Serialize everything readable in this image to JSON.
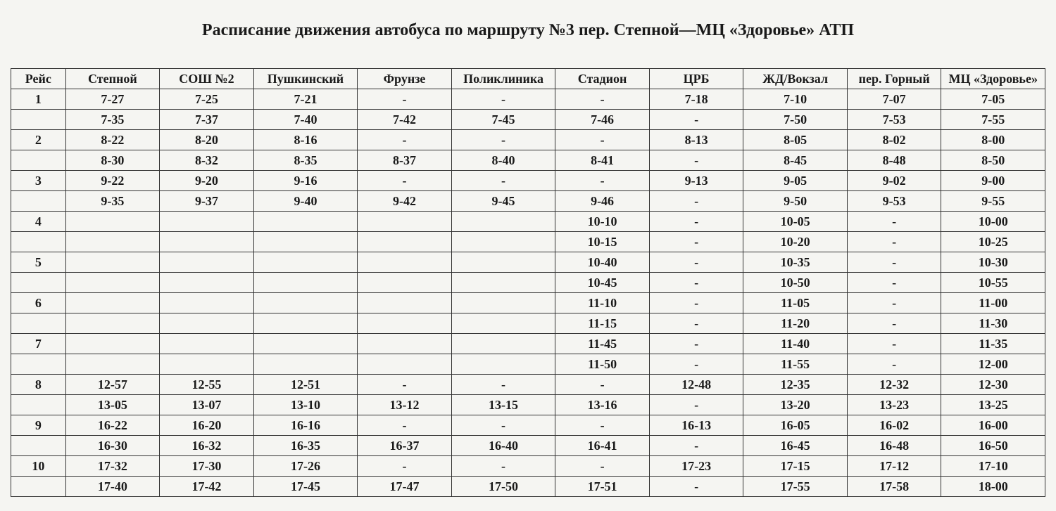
{
  "title": "Расписание движения автобуса по маршруту №3   пер. Степной—МЦ «Здоровье» АТП",
  "columns": [
    "Рейс",
    "Степной",
    "СОШ №2",
    "Пушкинский",
    "Фрунзе",
    "Поликлиника",
    "Стадион",
    "ЦРБ",
    "ЖД/Вокзал",
    "пер. Горный",
    "МЦ «Здоровье»"
  ],
  "rows": [
    [
      "1",
      "7-27",
      "7-25",
      "7-21",
      "-",
      "-",
      "-",
      "7-18",
      "7-10",
      "7-07",
      "7-05"
    ],
    [
      "",
      "7-35",
      "7-37",
      "7-40",
      "7-42",
      "7-45",
      "7-46",
      "-",
      "7-50",
      "7-53",
      "7-55"
    ],
    [
      "2",
      "8-22",
      "8-20",
      "8-16",
      "-",
      "-",
      "-",
      "8-13",
      "8-05",
      "8-02",
      "8-00"
    ],
    [
      "",
      "8-30",
      "8-32",
      "8-35",
      "8-37",
      "8-40",
      "8-41",
      "-",
      "8-45",
      "8-48",
      "8-50"
    ],
    [
      "3",
      "9-22",
      "9-20",
      "9-16",
      "-",
      "-",
      "-",
      "9-13",
      "9-05",
      "9-02",
      "9-00"
    ],
    [
      "",
      "9-35",
      "9-37",
      "9-40",
      "9-42",
      "9-45",
      "9-46",
      "-",
      "9-50",
      "9-53",
      "9-55"
    ],
    [
      "4",
      "",
      "",
      "",
      "",
      "",
      "10-10",
      "-",
      "10-05",
      "-",
      "10-00"
    ],
    [
      "",
      "",
      "",
      "",
      "",
      "",
      "10-15",
      "-",
      "10-20",
      "-",
      "10-25"
    ],
    [
      "5",
      "",
      "",
      "",
      "",
      "",
      "10-40",
      "-",
      "10-35",
      "-",
      "10-30"
    ],
    [
      "",
      "",
      "",
      "",
      "",
      "",
      "10-45",
      "-",
      "10-50",
      "-",
      "10-55"
    ],
    [
      "6",
      "",
      "",
      "",
      "",
      "",
      "11-10",
      "-",
      "11-05",
      "-",
      "11-00"
    ],
    [
      "",
      "",
      "",
      "",
      "",
      "",
      "11-15",
      "-",
      "11-20",
      "-",
      "11-30"
    ],
    [
      "7",
      "",
      "",
      "",
      "",
      "",
      "11-45",
      "-",
      "11-40",
      "-",
      "11-35"
    ],
    [
      "",
      "",
      "",
      "",
      "",
      "",
      "11-50",
      "-",
      "11-55",
      "-",
      "12-00"
    ],
    [
      "8",
      "12-57",
      "12-55",
      "12-51",
      "-",
      "-",
      "-",
      "12-48",
      "12-35",
      "12-32",
      "12-30"
    ],
    [
      "",
      "13-05",
      "13-07",
      "13-10",
      "13-12",
      "13-15",
      "13-16",
      "-",
      "13-20",
      "13-23",
      "13-25"
    ],
    [
      "9",
      "16-22",
      "16-20",
      "16-16",
      "-",
      "-",
      "-",
      "16-13",
      "16-05",
      "16-02",
      "16-00"
    ],
    [
      "",
      "16-30",
      "16-32",
      "16-35",
      "16-37",
      "16-40",
      "16-41",
      "-",
      "16-45",
      "16-48",
      "16-50"
    ],
    [
      "10",
      "17-32",
      "17-30",
      "17-26",
      "-",
      "-",
      "-",
      "17-23",
      "17-15",
      "17-12",
      "17-10"
    ],
    [
      "",
      "17-40",
      "17-42",
      "17-45",
      "17-47",
      "17-50",
      "17-51",
      "-",
      "17-55",
      "17-58",
      "18-00"
    ]
  ],
  "style": {
    "background_color": "#f5f5f2",
    "text_color": "#1a1a1a",
    "border_color": "#333333",
    "title_fontsize": 24,
    "cell_fontsize": 18,
    "font_family": "Times New Roman"
  }
}
